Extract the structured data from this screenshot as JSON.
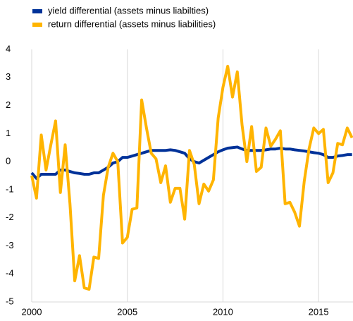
{
  "chart_data": {
    "type": "line",
    "x": [
      2000,
      2000.25,
      2000.5,
      2000.75,
      2001,
      2001.25,
      2001.5,
      2001.75,
      2002,
      2002.25,
      2002.5,
      2002.75,
      2003,
      2003.25,
      2003.5,
      2003.75,
      2004,
      2004.25,
      2004.5,
      2004.75,
      2005,
      2005.25,
      2005.5,
      2005.75,
      2006,
      2006.25,
      2006.5,
      2006.75,
      2007,
      2007.25,
      2007.5,
      2007.75,
      2008,
      2008.25,
      2008.5,
      2008.75,
      2009,
      2009.25,
      2009.5,
      2009.75,
      2010,
      2010.25,
      2010.5,
      2010.75,
      2011,
      2011.25,
      2011.5,
      2011.75,
      2012,
      2012.25,
      2012.5,
      2012.75,
      2013,
      2013.25,
      2013.5,
      2013.75,
      2014,
      2014.25,
      2014.5,
      2014.75,
      2015,
      2015.25,
      2015.5,
      2015.75,
      2016,
      2016.25,
      2016.5,
      2016.75
    ],
    "series": [
      {
        "name": "yield differential (assets minus liabilties)",
        "color": "#003299",
        "values": [
          -0.4,
          -0.6,
          -0.45,
          -0.45,
          -0.45,
          -0.45,
          -0.3,
          -0.3,
          -0.35,
          -0.4,
          -0.42,
          -0.45,
          -0.45,
          -0.4,
          -0.4,
          -0.3,
          -0.2,
          -0.05,
          0.0,
          0.15,
          0.15,
          0.2,
          0.25,
          0.3,
          0.35,
          0.4,
          0.4,
          0.4,
          0.4,
          0.42,
          0.4,
          0.35,
          0.3,
          0.1,
          0.0,
          -0.05,
          0.05,
          0.15,
          0.25,
          0.35,
          0.42,
          0.48,
          0.5,
          0.52,
          0.45,
          0.4,
          0.4,
          0.4,
          0.4,
          0.42,
          0.45,
          0.45,
          0.48,
          0.45,
          0.45,
          0.42,
          0.4,
          0.38,
          0.35,
          0.32,
          0.3,
          0.25,
          0.15,
          0.15,
          0.2,
          0.22,
          0.25,
          0.25
        ]
      },
      {
        "name": "return differential (assets minus liabilities)",
        "color": "#ffb400",
        "values": [
          -0.5,
          -1.3,
          0.95,
          -0.3,
          0.6,
          1.45,
          -1.1,
          0.6,
          -1.5,
          -4.25,
          -3.35,
          -4.5,
          -4.55,
          -3.4,
          -3.45,
          -1.2,
          -0.2,
          0.3,
          0.0,
          -2.9,
          -2.7,
          -1.7,
          -1.65,
          2.2,
          1.2,
          0.3,
          0.1,
          -0.75,
          -0.15,
          -1.45,
          -0.95,
          -0.95,
          -2.05,
          0.4,
          -0.1,
          -1.5,
          -0.8,
          -1.05,
          -0.65,
          1.55,
          2.65,
          3.4,
          2.3,
          3.2,
          1.3,
          0.0,
          1.25,
          -0.35,
          -0.2,
          1.2,
          0.55,
          0.8,
          1.1,
          -1.5,
          -1.45,
          -1.8,
          -2.3,
          -0.7,
          0.45,
          1.2,
          1.0,
          1.15,
          -0.75,
          -0.4,
          0.65,
          0.6,
          1.2,
          0.85
        ]
      }
    ],
    "xlim": [
      2000,
      2016.8
    ],
    "xticks": [
      2000,
      2005,
      2010,
      2015
    ],
    "ylim": [
      -5,
      4
    ],
    "yticks": [
      -5,
      -4,
      -3,
      -2,
      -1,
      0,
      1,
      2,
      3,
      4
    ],
    "grid": true
  }
}
